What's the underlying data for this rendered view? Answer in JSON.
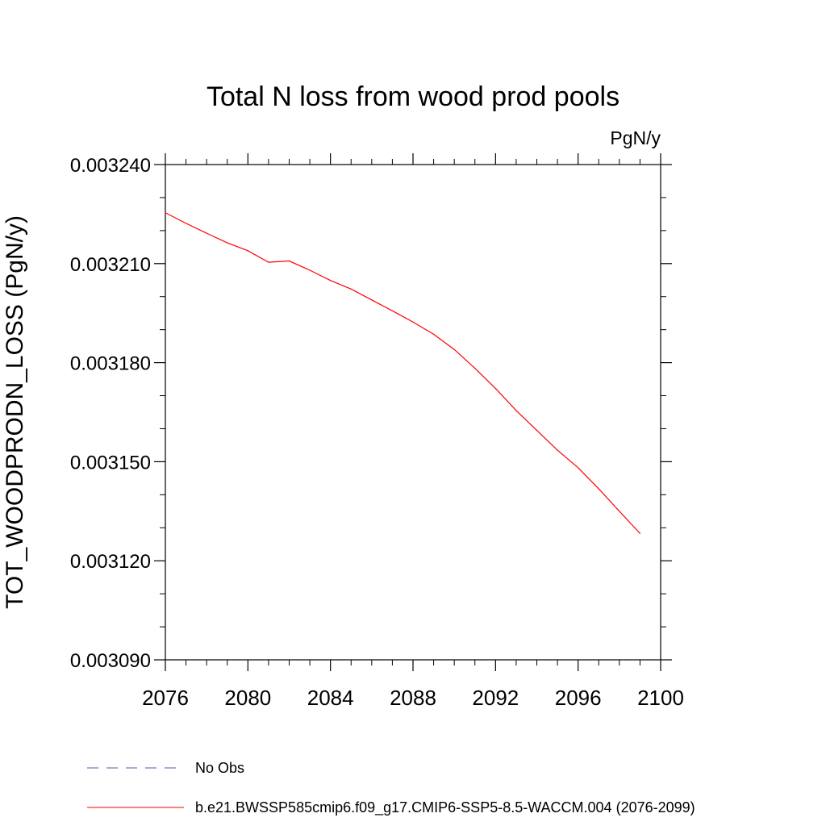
{
  "chart_data": {
    "type": "line",
    "title": "Total N loss from wood prod pools",
    "units_label": "PgN/y",
    "ylabel": "TOT_WOODPRODN_LOSS  (PgN/y)",
    "xlabel": "",
    "xlim": [
      2076,
      2100
    ],
    "ylim": [
      0.00309,
      0.00324
    ],
    "x_ticks": [
      "2076",
      "2080",
      "2084",
      "2088",
      "2092",
      "2096",
      "2100"
    ],
    "y_ticks": [
      "0.003090",
      "0.003120",
      "0.003150",
      "0.003180",
      "0.003210",
      "0.003240"
    ],
    "grid": false,
    "legend_position": "bottom",
    "series": [
      {
        "name": "b.e21.BWSSP585cmip6.f09_g17.CMIP6-SSP5-8.5-WACCM.004 (2076-2099)",
        "color": "#ff0000",
        "style": "solid",
        "x": [
          2076,
          2077,
          2078,
          2079,
          2080,
          2081,
          2082,
          2083,
          2084,
          2085,
          2086,
          2087,
          2088,
          2089,
          2090,
          2091,
          2092,
          2093,
          2094,
          2095,
          2096,
          2097,
          2098,
          2099
        ],
        "y": [
          0.0032254,
          0.0032222,
          0.0032192,
          0.0032163,
          0.0032139,
          0.0032104,
          0.0032108,
          0.003208,
          0.0032049,
          0.0032023,
          0.003199,
          0.0031957,
          0.0031923,
          0.0031886,
          0.003184,
          0.0031783,
          0.0031722,
          0.0031655,
          0.0031595,
          0.0031535,
          0.0031482,
          0.0031418,
          0.003135,
          0.0031283
        ]
      }
    ],
    "legend": [
      {
        "label": "No Obs",
        "color": "#5555aa",
        "style": "dashed"
      },
      {
        "label": "b.e21.BWSSP585cmip6.f09_g17.CMIP6-SSP5-8.5-WACCM.004 (2076-2099)",
        "color": "#ff0000",
        "style": "solid"
      }
    ]
  }
}
